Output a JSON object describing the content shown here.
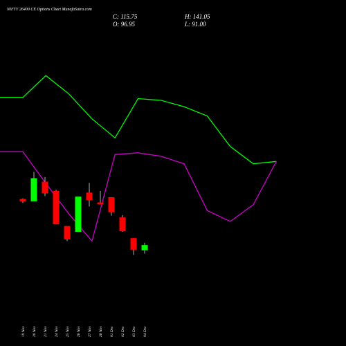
{
  "header": {
    "title": "NIFTY 26400  CE Options  Chart MunafaSutra.com",
    "close": "C: 115.75",
    "open": "O: 96.95",
    "high": "H: 141.05",
    "low": "L: 91.00"
  },
  "colors": {
    "background": "#000000",
    "up": "#00ff00",
    "down": "#ff0000",
    "upper_line": "#00ff00",
    "lower_line": "#cc00cc",
    "text": "#ffffff"
  },
  "chart_data": {
    "type": "candlestick",
    "title": "NIFTY 26400  CE Options  Chart MunafaSutra.com",
    "categories": [
      "19 Nov",
      "20 Nov",
      "21 Nov",
      "24 Nov",
      "25 Nov",
      "26 Nov",
      "27 Nov",
      "28 Nov",
      "01 Dec",
      "02 Dec",
      "03 Dec",
      "04 Dec"
    ],
    "candles": [
      {
        "date": "19 Nov",
        "open": 255,
        "high": 256,
        "close": 251,
        "low": 248
      },
      {
        "date": "20 Nov",
        "open": 251,
        "high": 302,
        "close": 291,
        "low": 251
      },
      {
        "date": "21 Nov",
        "open": 285,
        "high": 293,
        "close": 265,
        "low": 260
      },
      {
        "date": "24 Nov",
        "open": 269,
        "high": 271,
        "close": 211,
        "low": 211
      },
      {
        "date": "25 Nov",
        "open": 208,
        "high": 208,
        "close": 185,
        "low": 182
      },
      {
        "date": "26 Nov",
        "open": 198,
        "high": 259,
        "close": 259,
        "low": 198
      },
      {
        "date": "27 Nov",
        "open": 266,
        "high": 283,
        "close": 253,
        "low": 242
      },
      {
        "date": "28 Nov",
        "open": 249,
        "high": 269,
        "close": 246,
        "low": 246
      },
      {
        "date": "01 Dec",
        "open": 258,
        "high": 258,
        "close": 232,
        "low": 226
      },
      {
        "date": "02 Dec",
        "open": 223,
        "high": 227,
        "close": 199,
        "low": 198
      },
      {
        "date": "03 Dec",
        "open": 187,
        "high": 187,
        "close": 167,
        "low": 158
      },
      {
        "date": "04 Dec",
        "open": 166,
        "high": 179,
        "close": 175,
        "low": 160
      }
    ],
    "upper_band": {
      "x": [
        "",
        "19 Nov",
        "20 Nov",
        "21 Nov",
        "24 Nov",
        "25 Nov",
        "26 Nov",
        "27 Nov",
        "28 Nov",
        "01 Dec",
        "02 Dec",
        "03 Dec",
        "04 Dec"
      ],
      "values": [
        431,
        431,
        469,
        437,
        394,
        361,
        429,
        426,
        415,
        399,
        346,
        316,
        320
      ]
    },
    "lower_band": {
      "x": [
        "",
        "19 Nov",
        "20 Nov",
        "21 Nov",
        "24 Nov",
        "25 Nov",
        "26 Nov",
        "27 Nov",
        "28 Nov",
        "01 Dec",
        "02 Dec",
        "03 Dec",
        "04 Dec"
      ],
      "values": [
        337,
        337,
        282,
        229,
        182,
        332,
        335,
        329,
        316,
        235,
        216,
        245,
        320
      ]
    },
    "ylim": [
      0,
      600
    ],
    "grid": false,
    "legend": "none"
  }
}
